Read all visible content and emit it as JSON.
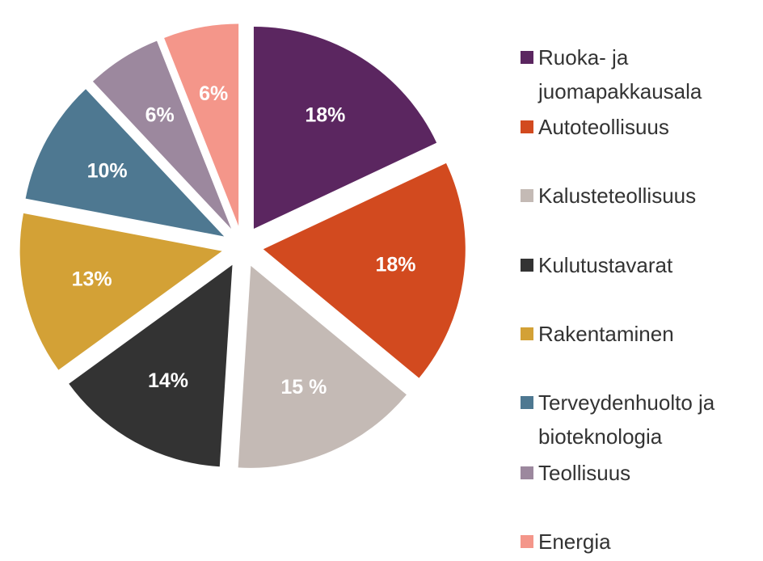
{
  "chart_data": {
    "type": "pie",
    "categories": [
      "Ruoka- ja juomapakkausala",
      "Autoteollisuus",
      "Kalusteteollisuus",
      "Kulutustavarat",
      "Rakentaminen",
      "Terveydenhuolto ja bioteknologia",
      "Teollisuus",
      "Energia"
    ],
    "values": [
      18,
      18,
      15,
      14,
      13,
      10,
      6,
      6
    ],
    "value_labels": [
      "18%",
      "18%",
      "15 %",
      "14%",
      "13%",
      "10%",
      "6%",
      "6%"
    ],
    "colors": [
      "#5b2660",
      "#d24a1f",
      "#c4bab5",
      "#333333",
      "#d3a136",
      "#4e7891",
      "#9c889e",
      "#f4968a"
    ],
    "legend": "right"
  }
}
